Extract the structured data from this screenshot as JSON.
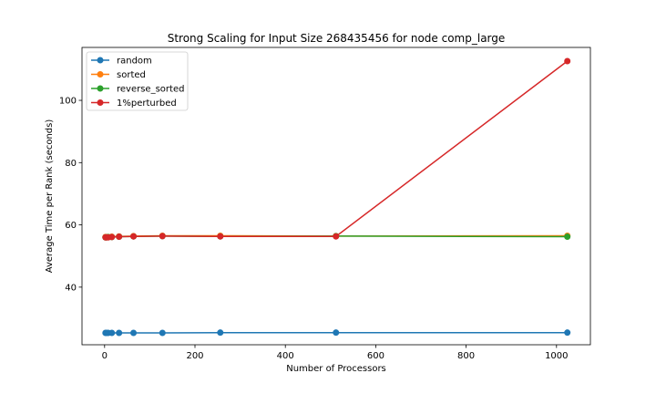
{
  "chart_data": {
    "type": "line",
    "title": "Strong Scaling for Input Size 268435456 for node comp_large",
    "xlabel": "Number of Processors",
    "ylabel": "Average Time per Rank (seconds)",
    "xlim": [
      -50,
      1075
    ],
    "ylim": [
      21.5,
      117.0
    ],
    "xticks": [
      0,
      200,
      400,
      600,
      800,
      1000
    ],
    "yticks": [
      40,
      60,
      80,
      100
    ],
    "grid": false,
    "legend_position": "top-left",
    "x": [
      2,
      4,
      8,
      16,
      32,
      64,
      128,
      256,
      512,
      1024
    ],
    "series": [
      {
        "name": "random",
        "color": "#1f77b4",
        "values": [
          25.3,
          25.3,
          25.3,
          25.3,
          25.3,
          25.3,
          25.3,
          25.4,
          25.4,
          25.4
        ]
      },
      {
        "name": "sorted",
        "color": "#ff7f0e",
        "values": [
          56.1,
          56.1,
          56.1,
          56.2,
          56.3,
          56.4,
          56.5,
          56.5,
          56.4,
          56.5
        ]
      },
      {
        "name": "reverse_sorted",
        "color": "#2ca02c",
        "values": [
          56.0,
          56.0,
          56.1,
          56.1,
          56.2,
          56.3,
          56.4,
          56.3,
          56.4,
          56.2
        ]
      },
      {
        "name": "1%perturbed",
        "color": "#d62728",
        "values": [
          56.0,
          56.0,
          56.0,
          56.1,
          56.2,
          56.3,
          56.4,
          56.3,
          56.3,
          112.6
        ]
      }
    ]
  }
}
